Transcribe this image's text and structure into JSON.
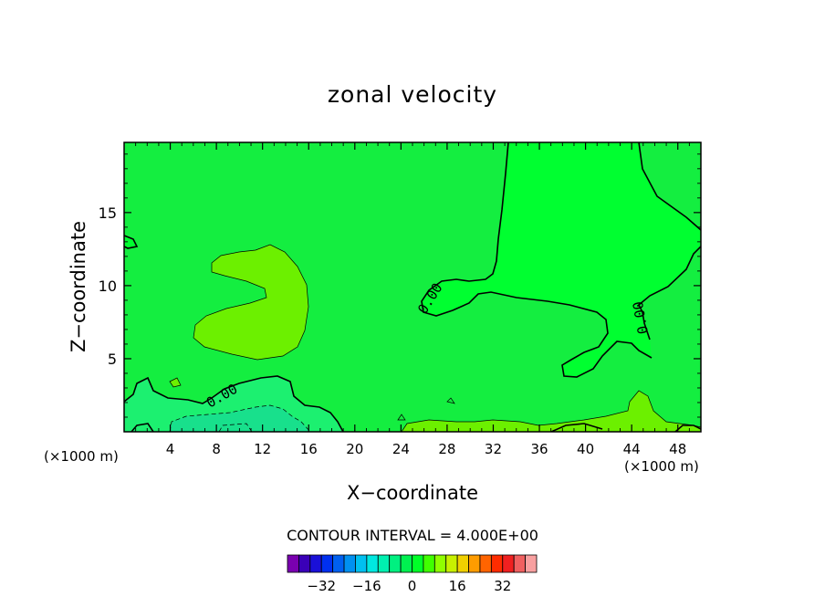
{
  "chart_data": {
    "type": "contour",
    "title": "zonal velocity",
    "xlabel": "X−coordinate",
    "ylabel": "Z−coordinate",
    "x_unit": "(×1000 m)",
    "x_unit_right": "(×1000 m)",
    "xlim": [
      0,
      50
    ],
    "ylim": [
      0,
      19.8
    ],
    "x_ticks": [
      4,
      8,
      12,
      16,
      20,
      24,
      28,
      32,
      36,
      40,
      44,
      48
    ],
    "y_ticks": [
      5,
      10,
      15
    ],
    "contour_label": "0.00",
    "contour_interval_text": "CONTOUR INTERVAL =  4.000E+00",
    "colorbar": {
      "colors": [
        "#7a00b0",
        "#3a00b8",
        "#1a10d8",
        "#0030f0",
        "#0060f0",
        "#0090f0",
        "#00c0f0",
        "#00e8e0",
        "#00f0b0",
        "#00f080",
        "#00f050",
        "#00ff28",
        "#40ff00",
        "#90ff00",
        "#c8f000",
        "#f0d000",
        "#ff9c00",
        "#ff6400",
        "#ff2c00",
        "#f02020",
        "#f06060",
        "#f8a0a0"
      ],
      "labels": [
        "−32",
        "−16",
        "0",
        "16",
        "32"
      ],
      "label_values": [
        -32,
        -16,
        0,
        16,
        32
      ],
      "vmin": -44,
      "vmax": 44
    },
    "regions": {
      "background": "#14ee40",
      "positive": "#00ff30",
      "weak_positive": "#6cf000",
      "negative_core": "#18e08c",
      "negative": "#1cf070"
    }
  }
}
